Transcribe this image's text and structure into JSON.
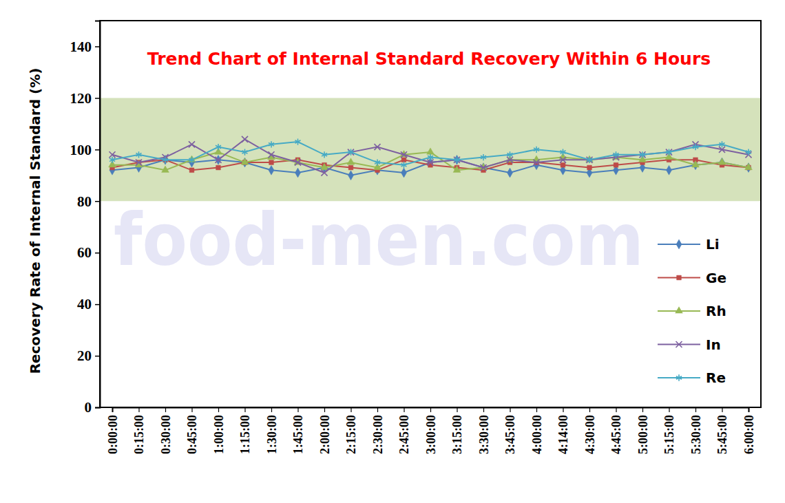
{
  "chart_data": {
    "type": "line",
    "title": "Trend Chart of Internal Standard Recovery Within 6 Hours",
    "y_label": "Recovery Rate of Internal Standard (%)",
    "watermark": "food-men.com",
    "categories": [
      "0:00:00",
      "0:15:00",
      "0:30:00",
      "0:45:00",
      "1:00:00",
      "1:15:00",
      "1:30:00",
      "1:45:00",
      "2:00:00",
      "2:15:00",
      "2:30:00",
      "2:45:00",
      "3:00:00",
      "3:15:00",
      "3:30:00",
      "3:45:00",
      "4:00:00",
      "4:14:00",
      "4:30:00",
      "4:45:00",
      "5:00:00",
      "5:15:00",
      "5:30:00",
      "5:45:00",
      "6:00:00"
    ],
    "series": [
      {
        "name": "Li",
        "color": "#4a7ebb",
        "marker": "diamond",
        "values": [
          92,
          93,
          96,
          95,
          96,
          95,
          92,
          91,
          93,
          90,
          92,
          91,
          95,
          96,
          93,
          91,
          94,
          92,
          91,
          92,
          93,
          92,
          94,
          95,
          93
        ]
      },
      {
        "name": "Ge",
        "color": "#be4b48",
        "marker": "square",
        "values": [
          93,
          95,
          96,
          92,
          93,
          95,
          95,
          96,
          94,
          93,
          92,
          96,
          94,
          93,
          92,
          95,
          95,
          94,
          93,
          94,
          95,
          96,
          96,
          94,
          93
        ]
      },
      {
        "name": "Rh",
        "color": "#98b954",
        "marker": "triangle",
        "values": [
          94,
          94,
          92,
          96,
          99,
          95,
          97,
          95,
          93,
          95,
          93,
          98,
          99,
          92,
          93,
          96,
          96,
          97,
          96,
          97,
          96,
          97,
          94,
          95,
          93
        ]
      },
      {
        "name": "In",
        "color": "#7d60a0",
        "marker": "x",
        "values": [
          98,
          95,
          97,
          102,
          96,
          104,
          98,
          95,
          91,
          99,
          101,
          98,
          95,
          96,
          93,
          96,
          95,
          96,
          96,
          97,
          98,
          99,
          102,
          100,
          98
        ]
      },
      {
        "name": "Re",
        "color": "#46aac5",
        "marker": "star",
        "values": [
          96,
          98,
          96,
          96,
          101,
          99,
          102,
          103,
          98,
          99,
          95,
          94,
          97,
          96,
          97,
          98,
          100,
          99,
          96,
          98,
          98,
          99,
          101,
          102,
          99
        ]
      }
    ],
    "band": [
      80,
      120
    ],
    "ylim": [
      0,
      150
    ],
    "yticks": [
      0,
      20,
      40,
      60,
      80,
      100,
      120,
      140
    ],
    "grid": false,
    "legend": "right"
  }
}
